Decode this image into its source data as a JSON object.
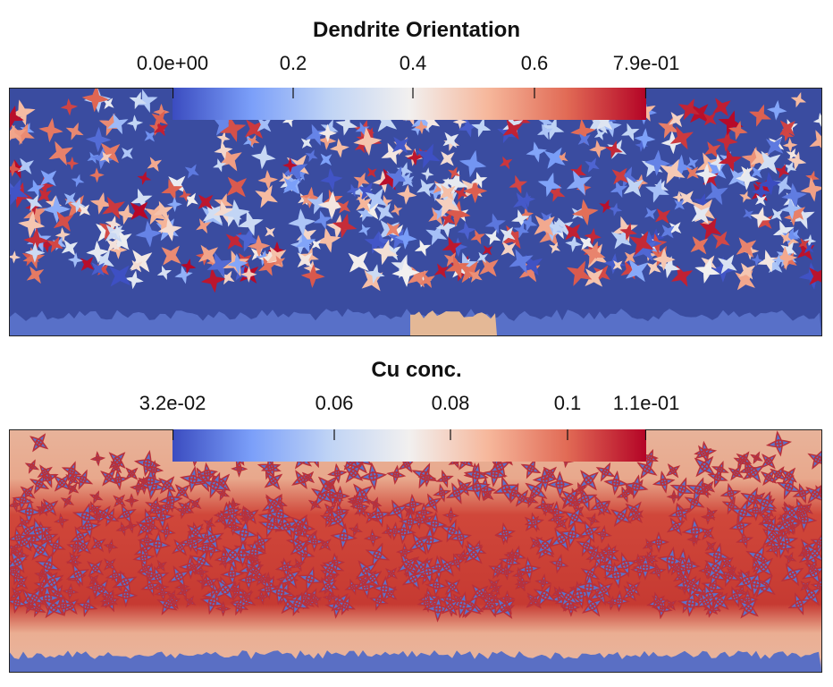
{
  "panels": [
    {
      "title": "Dendrite Orientation",
      "ticks": [
        "0.0e+00",
        "0.2",
        "0.4",
        "0.6",
        "7.9e-01"
      ],
      "colormap": [
        "#3b4cc0",
        "#7b9ff9",
        "#c0d4f5",
        "#f2f0ef",
        "#f6b79b",
        "#e16a55",
        "#b40426"
      ]
    },
    {
      "title": "Cu conc.",
      "ticks": [
        "3.2e-02",
        "0.06",
        "0.08",
        "0.1",
        "1.1e-01"
      ],
      "colormap": [
        "#3b4cc0",
        "#7b9ff9",
        "#c0d4f5",
        "#f2f0ef",
        "#f6b79b",
        "#e16a55",
        "#b40426"
      ]
    }
  ]
}
